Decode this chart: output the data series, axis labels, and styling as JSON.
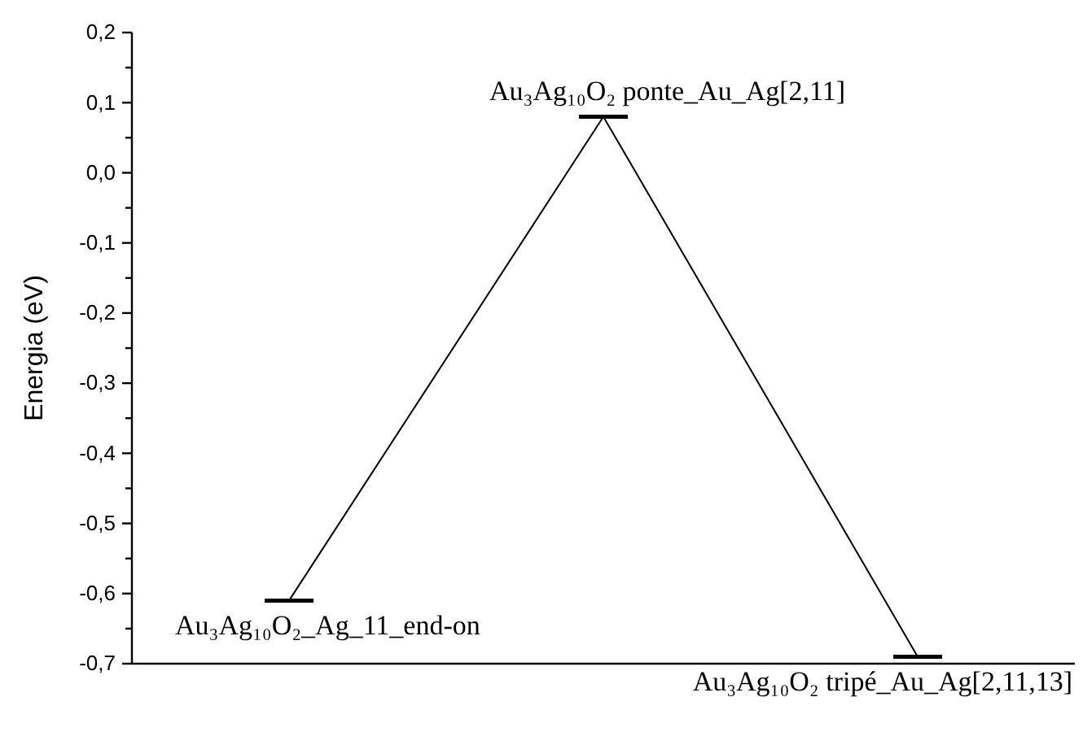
{
  "chart_data": {
    "type": "line",
    "ylabel": "Energia (eV)",
    "categories": [
      null,
      null,
      null
    ],
    "values": [
      -0.61,
      0.08,
      -0.69
    ],
    "color": "#000000",
    "annotations": [
      "Au₃Ag₁₀O₂_Ag_11_end-on",
      "Au₃Ag₁₀O₂ ponte_Au_Ag[2,11]",
      "Au₃Ag₁₀O₂ tripé_Au_Ag[2,11,13]"
    ],
    "ylim": [
      -0.7,
      0.2
    ],
    "yticks": [
      {
        "value": -0.7,
        "label": "-0,7"
      },
      {
        "value": -0.65,
        "label": null
      },
      {
        "value": -0.6,
        "label": "-0,6"
      },
      {
        "value": -0.55,
        "label": null
      },
      {
        "value": -0.5,
        "label": "-0,5"
      },
      {
        "value": -0.45,
        "label": null
      },
      {
        "value": -0.4,
        "label": "-0,4"
      },
      {
        "value": -0.35,
        "label": null
      },
      {
        "value": -0.3,
        "label": "-0,3"
      },
      {
        "value": -0.25,
        "label": null
      },
      {
        "value": -0.2,
        "label": "-0,2"
      },
      {
        "value": -0.15,
        "label": null
      },
      {
        "value": -0.1,
        "label": "-0,1"
      },
      {
        "value": -0.05,
        "label": null
      },
      {
        "value": 0,
        "label": "0,0"
      },
      {
        "value": 0.05,
        "label": null
      },
      {
        "value": 0.1,
        "label": "0,1"
      },
      {
        "value": 0.15,
        "label": null
      },
      {
        "value": 0.2,
        "label": "0,2"
      }
    ]
  }
}
